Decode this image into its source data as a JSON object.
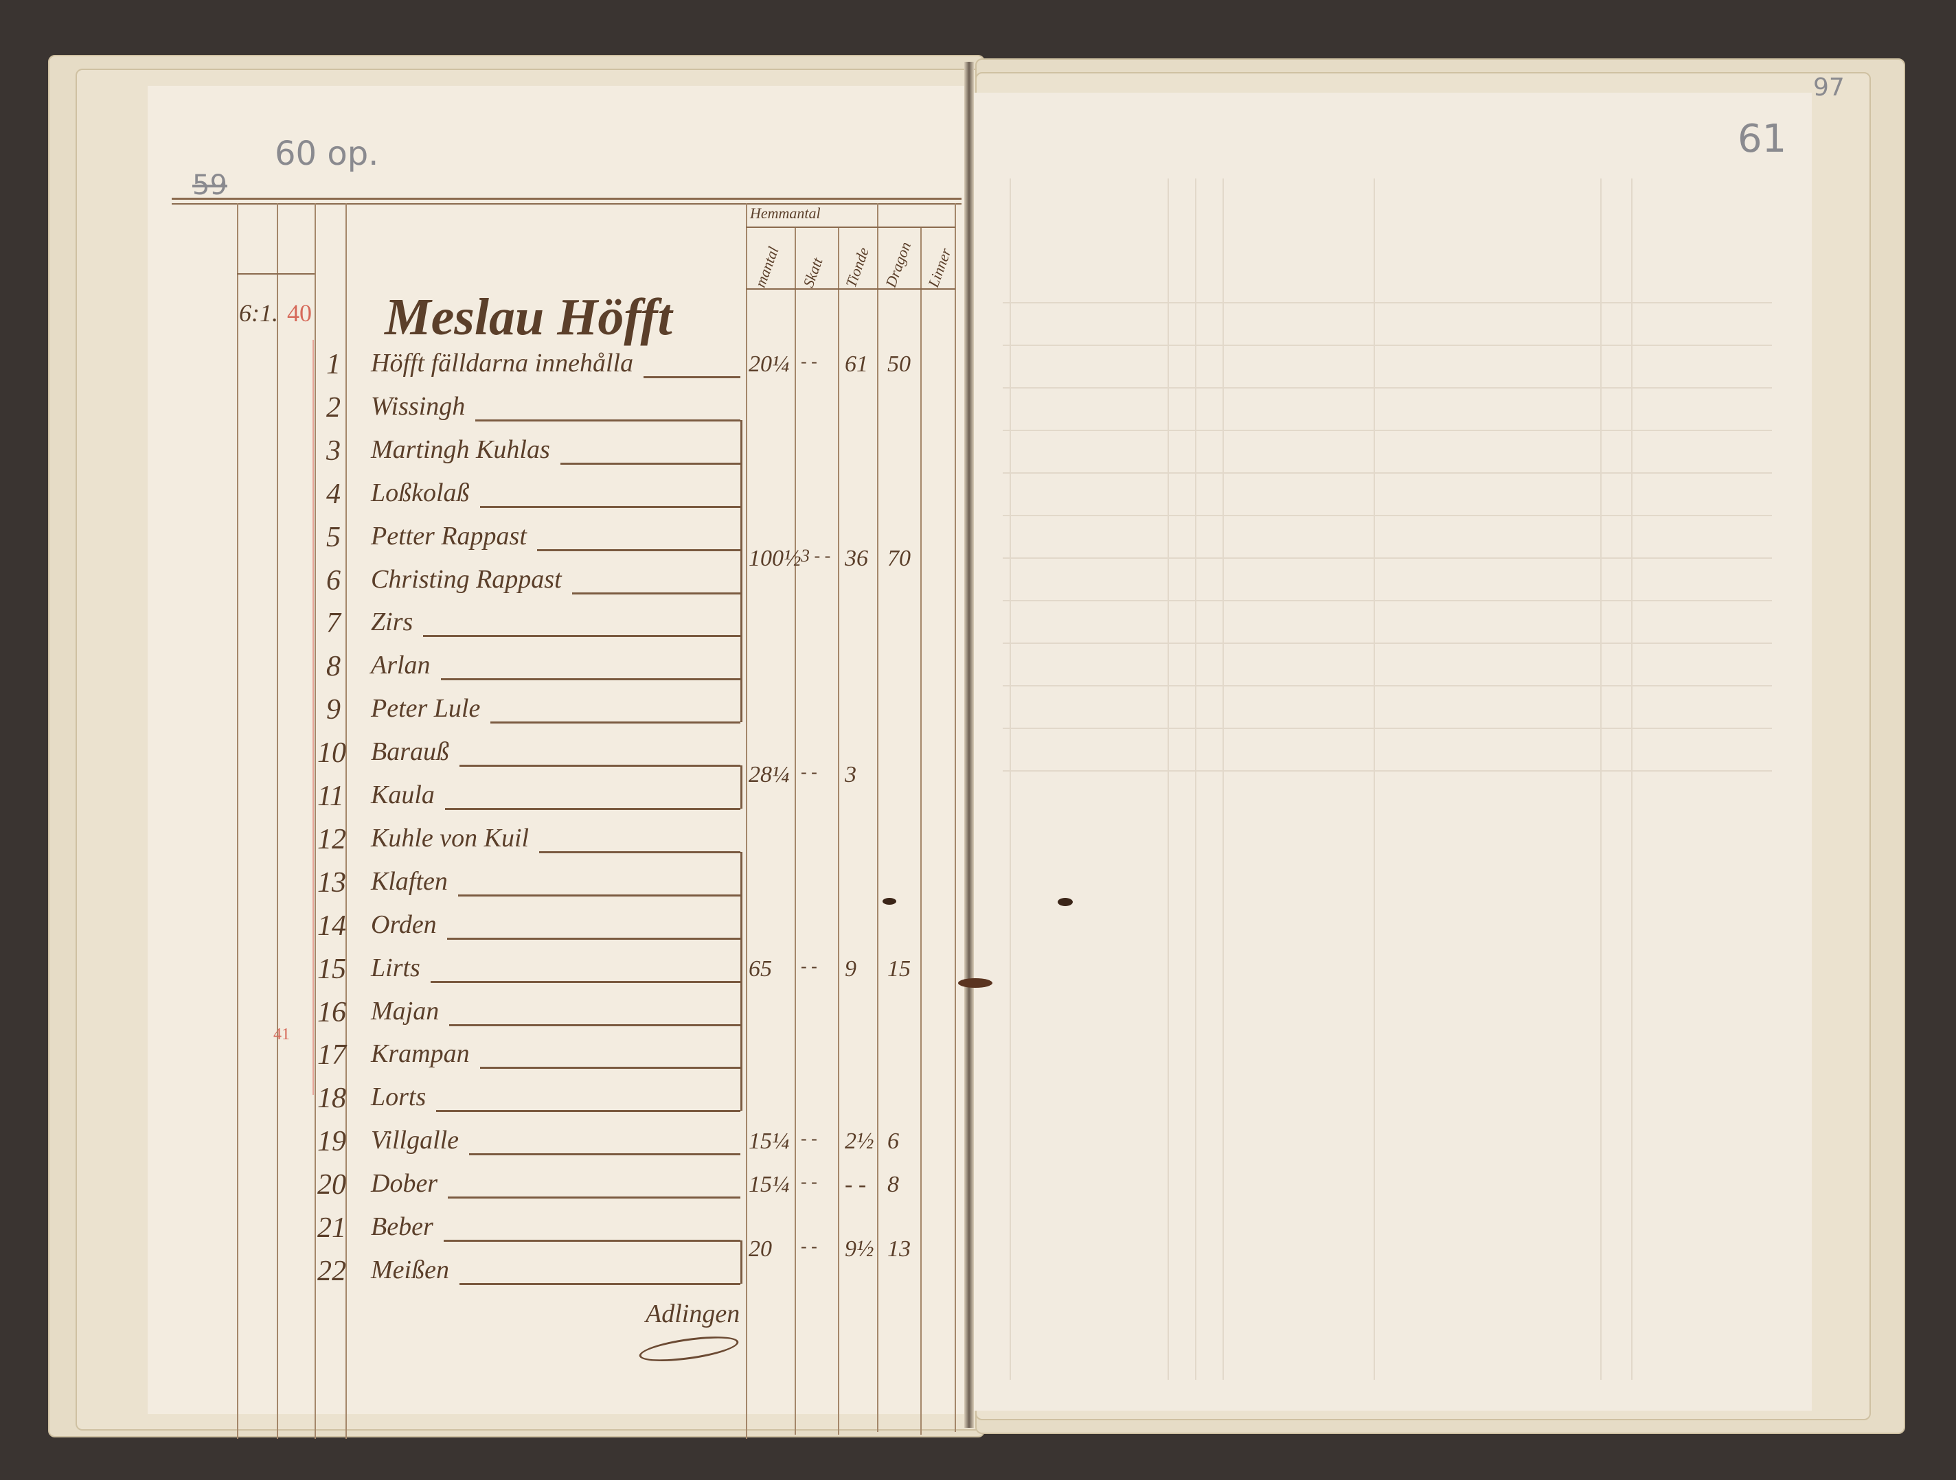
{
  "left_page": {
    "pencil_old_folio": "59",
    "pencil_folio": "60 op.",
    "ref_left": "6:1.",
    "ref_red": "40",
    "margin_red": "41",
    "title": "Meslau Höfft",
    "column_headers": {
      "group": "Hemmantal",
      "col1": "mantal",
      "col2": "Skatt",
      "col3": "Tionde",
      "col4": "Dragon",
      "col5": "Linner"
    },
    "rows": [
      {
        "no": "1",
        "name": "Höfft fälldarna innehålla"
      },
      {
        "no": "2",
        "name": "Wissingh"
      },
      {
        "no": "3",
        "name": "Martingh Kuhlas"
      },
      {
        "no": "4",
        "name": "Loßkolaß"
      },
      {
        "no": "5",
        "name": "Petter Rappast"
      },
      {
        "no": "6",
        "name": "Christing Rappast"
      },
      {
        "no": "7",
        "name": "Zirs"
      },
      {
        "no": "8",
        "name": "Arlan"
      },
      {
        "no": "9",
        "name": "Peter Lule"
      },
      {
        "no": "10",
        "name": "Barauß"
      },
      {
        "no": "11",
        "name": "Kaula"
      },
      {
        "no": "12",
        "name": "Kuhle von Kuil"
      },
      {
        "no": "13",
        "name": "Klaften"
      },
      {
        "no": "14",
        "name": "Orden"
      },
      {
        "no": "15",
        "name": "Lirts"
      },
      {
        "no": "16",
        "name": "Majan"
      },
      {
        "no": "17",
        "name": "Krampan"
      },
      {
        "no": "18",
        "name": "Lorts"
      },
      {
        "no": "19",
        "name": "Villgalle"
      },
      {
        "no": "20",
        "name": "Dober"
      },
      {
        "no": "21",
        "name": "Beber"
      },
      {
        "no": "22",
        "name": "Meißen"
      }
    ],
    "groups": [
      {
        "rows": "1",
        "values": [
          "20¼",
          "- -",
          "61",
          "50"
        ]
      },
      {
        "rows": "2-9",
        "values": [
          "100½",
          "3 - -",
          "36",
          "70"
        ]
      },
      {
        "rows": "10-11",
        "values": [
          "28¼",
          "- -",
          "3",
          ""
        ]
      },
      {
        "rows": "12-18",
        "values": [
          "65",
          "- -",
          "9",
          "15"
        ]
      },
      {
        "rows": "19",
        "values": [
          "15¼",
          "- -",
          "2½",
          "6"
        ]
      },
      {
        "rows": "20",
        "values": [
          "15¼",
          "- -",
          "- -",
          "8"
        ]
      },
      {
        "rows": "21-22",
        "values": [
          "20",
          "- -",
          "9½",
          "13"
        ]
      }
    ],
    "signature": "Adlingen"
  },
  "right_page": {
    "pencil_folio": "61",
    "pencil_edge_mark": "97"
  },
  "colors": {
    "ink": "#5b3f2a",
    "paper": "#f3ece0",
    "pencil": "#8a8a8f",
    "red_ink": "#d66a5a",
    "background": "#3a3431"
  }
}
